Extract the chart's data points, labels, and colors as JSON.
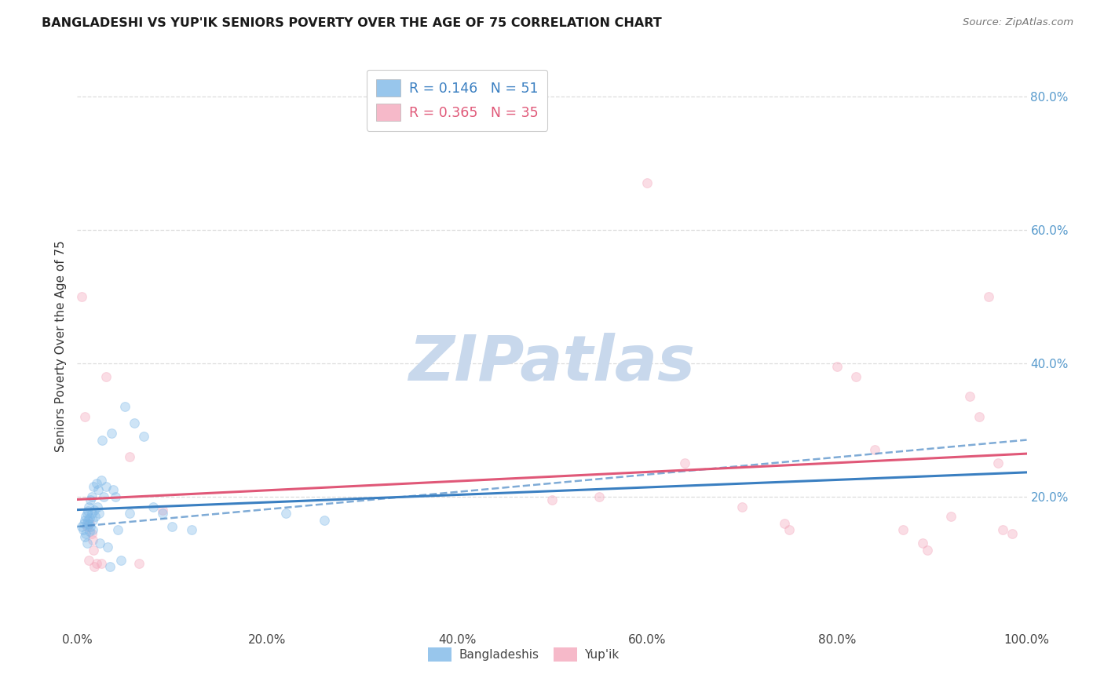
{
  "title": "BANGLADESHI VS YUP'IK SENIORS POVERTY OVER THE AGE OF 75 CORRELATION CHART",
  "source": "Source: ZipAtlas.com",
  "ylabel": "Seniors Poverty Over the Age of 75",
  "background_color": "#ffffff",
  "grid_color": "#dddddd",
  "xlim": [
    0.0,
    1.0
  ],
  "ylim": [
    0.0,
    0.85
  ],
  "blue_color": "#7EB8E8",
  "pink_color": "#F4A8BC",
  "blue_line_color": "#3A7FC1",
  "pink_line_color": "#E05878",
  "blue_legend_label": "R = 0.146   N = 51",
  "pink_legend_label": "R = 0.365   N = 35",
  "blue_cat_label": "Bangladeshis",
  "pink_cat_label": "Yup'ik",
  "watermark": "ZIPatlas",
  "watermark_color": "#C8D8EC",
  "marker_size": 72,
  "marker_alpha": 0.38,
  "bangladeshi_x": [
    0.005,
    0.006,
    0.007,
    0.008,
    0.008,
    0.009,
    0.009,
    0.01,
    0.01,
    0.01,
    0.011,
    0.011,
    0.012,
    0.012,
    0.013,
    0.013,
    0.014,
    0.014,
    0.015,
    0.015,
    0.016,
    0.016,
    0.017,
    0.018,
    0.019,
    0.02,
    0.021,
    0.022,
    0.023,
    0.024,
    0.025,
    0.026,
    0.028,
    0.03,
    0.032,
    0.034,
    0.036,
    0.038,
    0.04,
    0.043,
    0.046,
    0.05,
    0.055,
    0.06,
    0.07,
    0.08,
    0.09,
    0.1,
    0.12,
    0.22,
    0.26
  ],
  "bangladeshi_y": [
    0.155,
    0.15,
    0.16,
    0.165,
    0.14,
    0.17,
    0.145,
    0.175,
    0.16,
    0.13,
    0.178,
    0.165,
    0.185,
    0.158,
    0.168,
    0.148,
    0.195,
    0.155,
    0.2,
    0.175,
    0.165,
    0.15,
    0.215,
    0.18,
    0.17,
    0.22,
    0.185,
    0.21,
    0.175,
    0.13,
    0.225,
    0.285,
    0.2,
    0.215,
    0.125,
    0.095,
    0.295,
    0.21,
    0.2,
    0.15,
    0.105,
    0.335,
    0.175,
    0.31,
    0.29,
    0.185,
    0.175,
    0.155,
    0.15,
    0.175,
    0.165
  ],
  "yupik_x": [
    0.005,
    0.008,
    0.01,
    0.012,
    0.013,
    0.015,
    0.016,
    0.017,
    0.018,
    0.02,
    0.025,
    0.03,
    0.055,
    0.065,
    0.09,
    0.5,
    0.55,
    0.6,
    0.64,
    0.7,
    0.745,
    0.75,
    0.8,
    0.82,
    0.84,
    0.87,
    0.89,
    0.895,
    0.92,
    0.94,
    0.95,
    0.96,
    0.97,
    0.975,
    0.985
  ],
  "yupik_y": [
    0.5,
    0.32,
    0.155,
    0.105,
    0.16,
    0.145,
    0.135,
    0.12,
    0.095,
    0.1,
    0.1,
    0.38,
    0.26,
    0.1,
    0.18,
    0.195,
    0.2,
    0.67,
    0.25,
    0.185,
    0.16,
    0.15,
    0.395,
    0.38,
    0.27,
    0.15,
    0.13,
    0.12,
    0.17,
    0.35,
    0.32,
    0.5,
    0.25,
    0.15,
    0.145
  ],
  "dashed_line_x0": 0.0,
  "dashed_line_y0": 0.155,
  "dashed_line_x1": 1.0,
  "dashed_line_y1": 0.285
}
